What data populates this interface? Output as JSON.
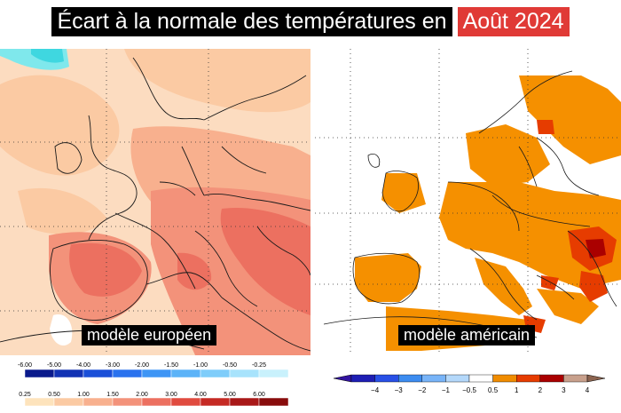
{
  "title": {
    "main": "Écart à la normale des températures en",
    "period": "Août 2024"
  },
  "maps": {
    "left": {
      "label": "modèle européen"
    },
    "right": {
      "label": "modèle américain"
    }
  },
  "legend_left": {
    "negative": {
      "ticks": [
        "-6.00",
        "-5.00",
        "-4.00",
        "-3.00",
        "-2.00",
        "-1.50",
        "-1.00",
        "-0.50",
        "-0.25"
      ],
      "colors": [
        "#0a1a8c",
        "#1232b4",
        "#1a4fd8",
        "#2a72ee",
        "#3e95f5",
        "#5cb3f8",
        "#7fcdfa",
        "#a8e3fc",
        "#c9f1fc"
      ]
    },
    "positive": {
      "ticks": [
        "0.25",
        "0.50",
        "1.00",
        "1.50",
        "2.00",
        "3.00",
        "4.00",
        "5.00",
        "6.00"
      ],
      "colors": [
        "#fde3bc",
        "#fbcaa3",
        "#f8b08e",
        "#f3927a",
        "#ec7060",
        "#e04b3f",
        "#c52a24",
        "#a81818",
        "#880c0c"
      ]
    }
  },
  "legend_right": {
    "ticks": [
      "−4",
      "−3",
      "−2",
      "−1",
      "−0.5",
      "0.5",
      "1",
      "2",
      "3",
      "4"
    ],
    "colors": [
      "#1e1eb4",
      "#2850e6",
      "#3c8cf0",
      "#78b4f8",
      "#b4d8fa",
      "#ffffff",
      "#f08c00",
      "#e63c00",
      "#aa0000",
      "#c8a08c"
    ],
    "arrow_left_color": "#3214a0",
    "arrow_right_color": "#8c6450"
  },
  "colors": {
    "title_bg": "#000000",
    "title_accent": "#e03a36",
    "ocean_left": "#fcdcc0",
    "land_right_anomaly": "#f59000"
  }
}
